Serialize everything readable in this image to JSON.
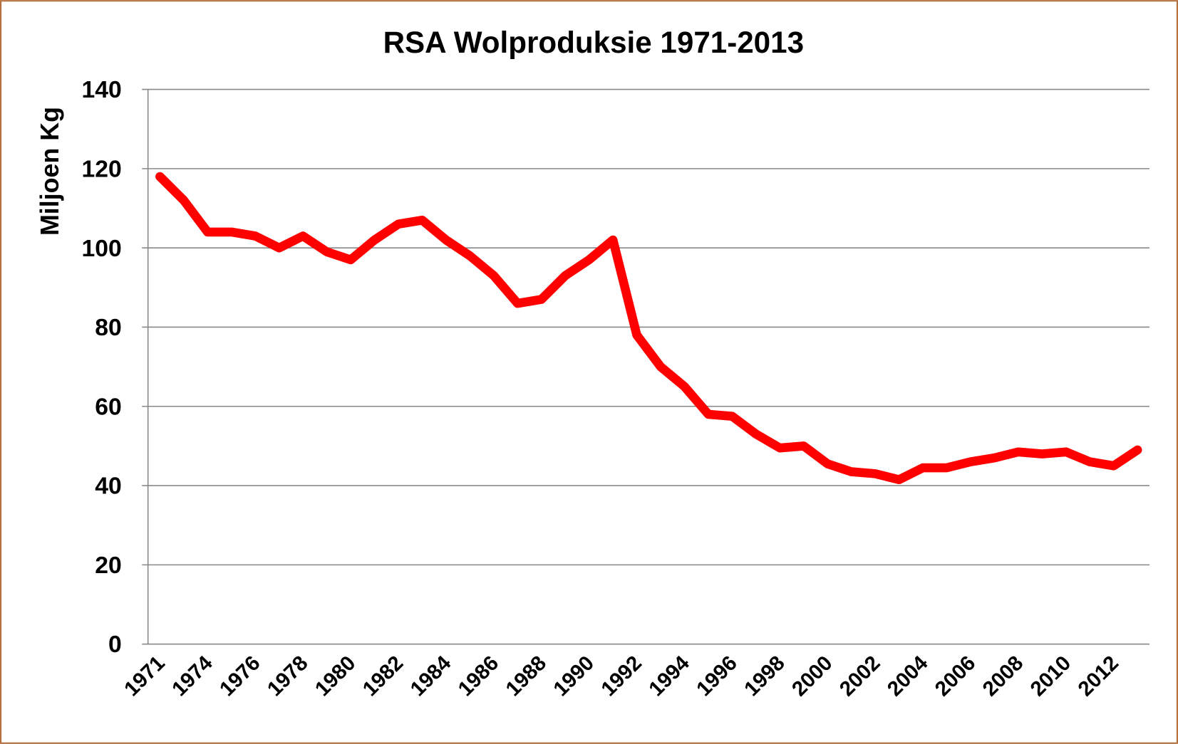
{
  "chart_data": {
    "type": "line",
    "title": "RSA Wolproduksie 1971-2013",
    "y_label": "Miljoen Kg",
    "categories": [
      "1971",
      null,
      "1974",
      null,
      "1976",
      null,
      "1978",
      null,
      "1980",
      null,
      "1982",
      null,
      "1984",
      null,
      "1986",
      null,
      "1988",
      null,
      "1990",
      null,
      "1992",
      null,
      "1994",
      null,
      "1996",
      null,
      "1998",
      null,
      "2000",
      null,
      "2002",
      null,
      "2004",
      null,
      "2006",
      null,
      "2008",
      null,
      "2010",
      null,
      "2012",
      null
    ],
    "series": [
      {
        "name": "Wolproduksie",
        "color": "#ff0000",
        "values": [
          118,
          112,
          104,
          104,
          103,
          100,
          103,
          99,
          97,
          102,
          106,
          107,
          102,
          98,
          93,
          86,
          87,
          93,
          97,
          102,
          78,
          70,
          65,
          58,
          57.5,
          53,
          49.5,
          50,
          45.5,
          43.5,
          43,
          41.5,
          44.5,
          44.5,
          46,
          47,
          48.5,
          48,
          48.5,
          46,
          45,
          49
        ]
      }
    ],
    "ylim": [
      0,
      140
    ],
    "yticks": [
      0,
      20,
      40,
      60,
      80,
      100,
      120,
      140
    ],
    "grid": true
  }
}
